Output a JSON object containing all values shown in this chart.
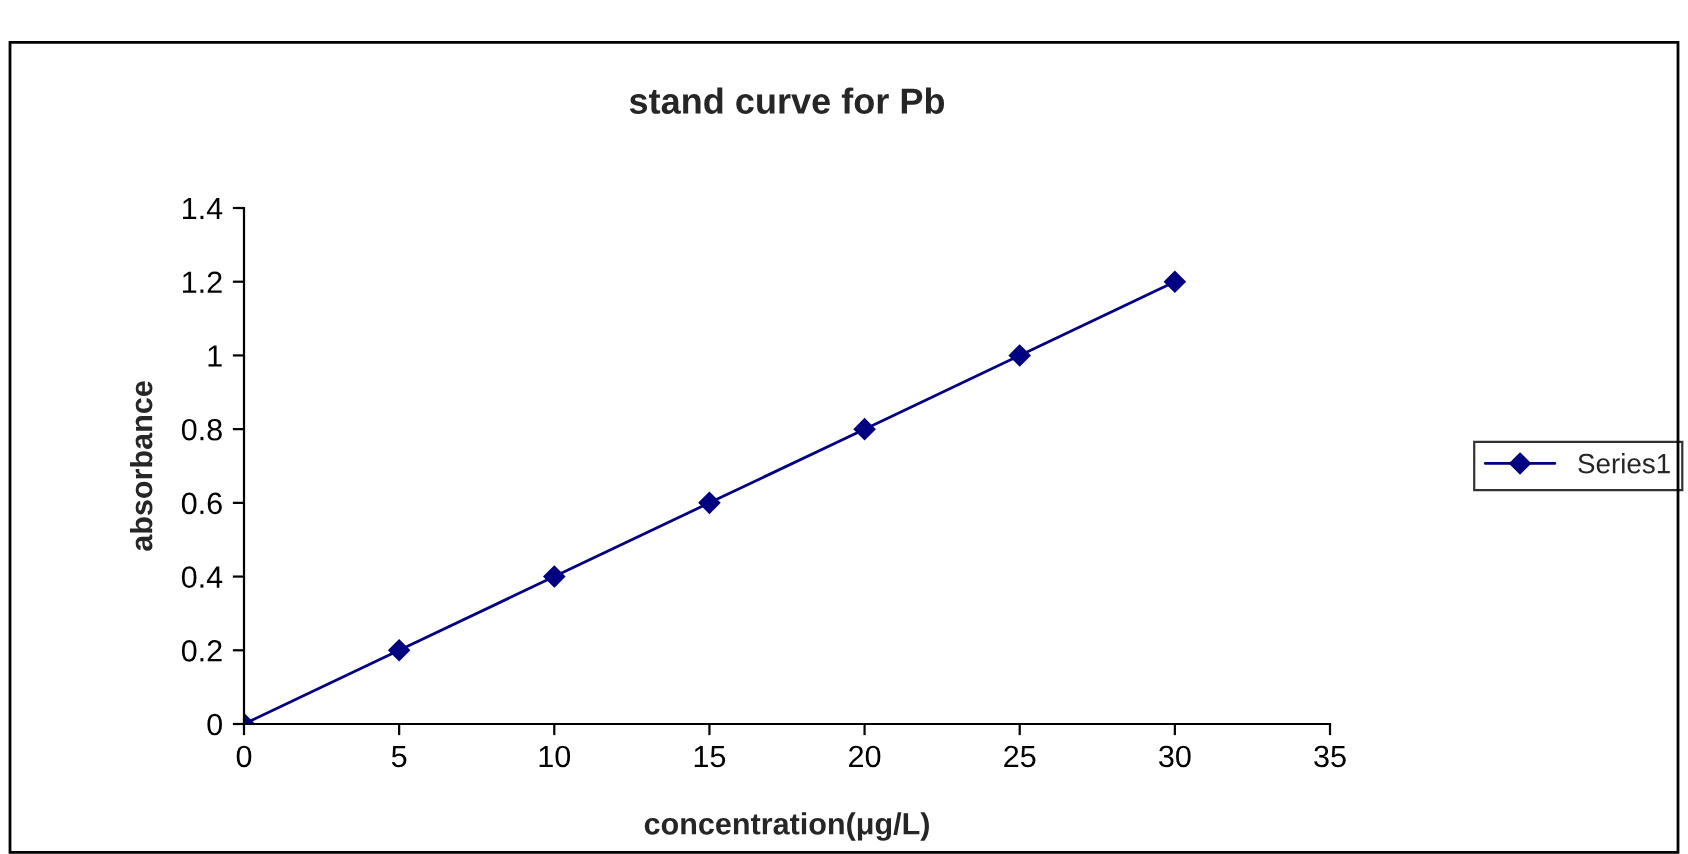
{
  "chart_data": {
    "type": "line",
    "title": "stand curve for Pb",
    "xlabel": "concentration(μg/L)",
    "ylabel": "absorbance",
    "x": [
      0,
      5,
      10,
      15,
      20,
      25,
      30
    ],
    "series": [
      {
        "name": "Series1",
        "color": "#000080",
        "values": [
          0,
          0.2,
          0.4,
          0.6,
          0.8,
          1.0,
          1.2
        ]
      }
    ],
    "xlim": [
      0,
      35
    ],
    "xticks": [
      0,
      5,
      10,
      15,
      20,
      25,
      30,
      35
    ],
    "ylim": [
      0,
      1.4
    ],
    "yticks": [
      0,
      {
        "value": 0.2,
        "label": "0.2"
      },
      {
        "value": 0.4,
        "label": "0.4"
      },
      {
        "value": 0.6,
        "label": "0.6"
      },
      {
        "value": 0.8,
        "label": "0.8"
      },
      1,
      {
        "value": 1.2,
        "label": "1.2"
      },
      {
        "value": 1.4,
        "label": "1.4"
      }
    ],
    "grid": false,
    "legend": "right",
    "marker": "diamond",
    "line_style": "solid"
  }
}
